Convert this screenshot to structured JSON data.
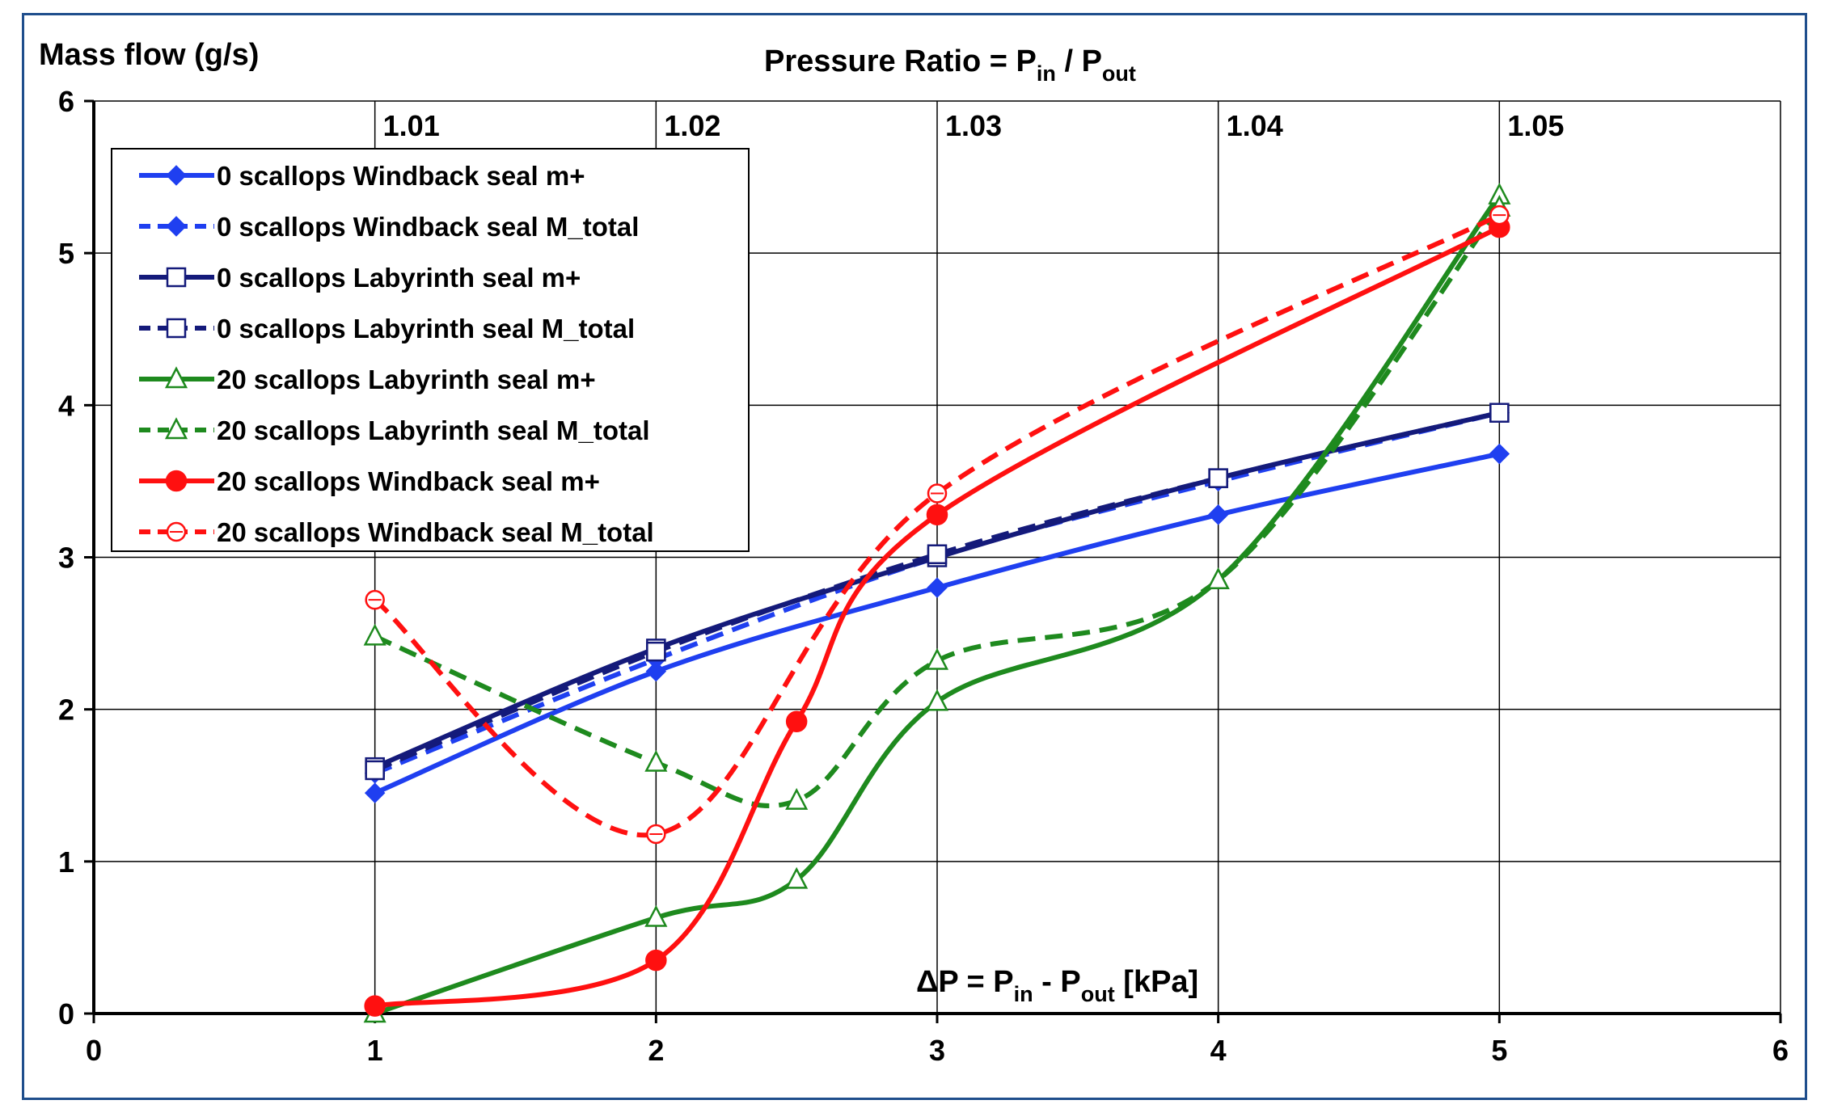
{
  "chart_data": {
    "type": "line",
    "title": "Pressure Ratio = P_in / P_out",
    "title_main": "Pressure Ratio = P",
    "title_sub1": "in",
    "title_mid": " / P",
    "title_sub2": "out",
    "ylabel": "Mass flow (g/s)",
    "xlabel": "ΔP = P_in - P_out [kPa]",
    "xlabel_main": "ΔP = P",
    "xlabel_sub1": "in",
    "xlabel_mid": " - P",
    "xlabel_sub2": "out",
    "xlabel_tail": " [kPa]",
    "xlim": [
      0,
      6
    ],
    "ylim": [
      0,
      6
    ],
    "x_ticks": [
      "0",
      "1",
      "2",
      "3",
      "4",
      "5",
      "6"
    ],
    "y_ticks": [
      "0",
      "1",
      "2",
      "3",
      "4",
      "5",
      "6"
    ],
    "secondary_x_ticks": [
      {
        "x": 1,
        "label": "1.01"
      },
      {
        "x": 2,
        "label": "1.02"
      },
      {
        "x": 3,
        "label": "1.03"
      },
      {
        "x": 4,
        "label": "1.04"
      },
      {
        "x": 5,
        "label": "1.05"
      }
    ],
    "grid": true,
    "legend_position": "top-left",
    "series": [
      {
        "name": "0 scallops Windback seal m+",
        "color": "#1f3ff0",
        "dash": false,
        "marker": "diamond-filled",
        "x": [
          1,
          2,
          3,
          4,
          5
        ],
        "values": [
          1.45,
          2.25,
          2.8,
          3.28,
          3.68
        ]
      },
      {
        "name": "0 scallops Windback seal M_total",
        "color": "#1f3ff0",
        "dash": true,
        "marker": "diamond-filled",
        "x": [
          1,
          2,
          3,
          4,
          5
        ],
        "values": [
          1.58,
          2.33,
          3.0,
          3.5,
          3.95
        ]
      },
      {
        "name": "0 scallops Labyrinth seal m+",
        "color": "#141a7a",
        "dash": false,
        "marker": "square-open",
        "x": [
          1,
          2,
          3,
          4,
          5
        ],
        "values": [
          1.62,
          2.4,
          3.0,
          3.52,
          3.95
        ]
      },
      {
        "name": "0 scallops Labyrinth seal M_total",
        "color": "#141a7a",
        "dash": true,
        "marker": "square-open",
        "x": [
          1,
          2,
          3,
          4,
          5
        ],
        "values": [
          1.6,
          2.38,
          3.02,
          3.52,
          3.95
        ]
      },
      {
        "name": "20 scallops Labyrinth seal m+",
        "color": "#1e8a1e",
        "dash": false,
        "marker": "triangle-open",
        "x": [
          1,
          2,
          2.5,
          3,
          4,
          5
        ],
        "values": [
          0.0,
          0.63,
          0.88,
          2.05,
          2.85,
          5.38
        ]
      },
      {
        "name": "20 scallops Labyrinth seal M_total",
        "color": "#1e8a1e",
        "dash": true,
        "marker": "triangle-open",
        "x": [
          1,
          2,
          2.5,
          3,
          4,
          5
        ],
        "values": [
          2.48,
          1.65,
          1.4,
          2.32,
          2.85,
          5.3
        ]
      },
      {
        "name": "20 scallops Windback seal m+",
        "color": "#ff1010",
        "dash": false,
        "marker": "circle-filled",
        "x": [
          1,
          2,
          2.5,
          3,
          5
        ],
        "values": [
          0.05,
          0.35,
          1.92,
          3.28,
          5.17
        ]
      },
      {
        "name": "20 scallops Windback seal M_total",
        "color": "#ff1010",
        "dash": true,
        "marker": "circle-open",
        "x": [
          1,
          2,
          3,
          5
        ],
        "values": [
          2.72,
          1.18,
          3.42,
          5.25
        ]
      }
    ]
  }
}
